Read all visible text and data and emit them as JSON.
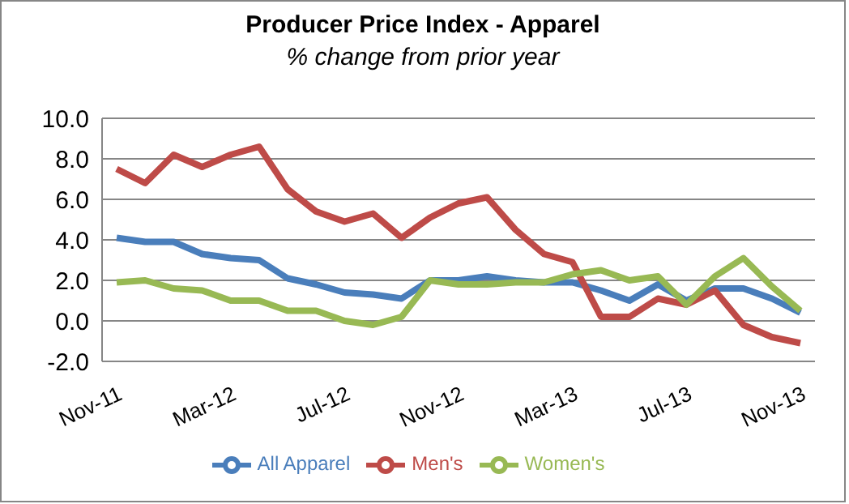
{
  "chart_data": {
    "type": "line",
    "title": "Producer Price Index - Apparel",
    "subtitle": "% change from prior year",
    "categories": [
      "Nov-11",
      null,
      null,
      null,
      "Mar-12",
      null,
      null,
      null,
      "Jul-12",
      null,
      null,
      null,
      "Nov-12",
      null,
      null,
      null,
      "Mar-13",
      null,
      null,
      null,
      "Jul-13",
      null,
      null,
      null,
      "Nov-13"
    ],
    "series": [
      {
        "name": "All Apparel",
        "color": "#4a7ebb",
        "values": [
          4.1,
          3.9,
          3.9,
          3.3,
          3.1,
          3.0,
          2.1,
          1.8,
          1.4,
          1.3,
          1.1,
          2.0,
          2.0,
          2.2,
          2.0,
          1.9,
          1.9,
          1.5,
          1.0,
          1.8,
          1.0,
          1.6,
          1.6,
          1.1,
          0.4
        ]
      },
      {
        "name": "Men's",
        "color": "#be4b48",
        "values": [
          7.5,
          6.8,
          8.2,
          7.6,
          8.2,
          8.6,
          6.5,
          5.4,
          4.9,
          5.3,
          4.1,
          5.1,
          5.8,
          6.1,
          4.5,
          3.3,
          2.9,
          0.2,
          0.2,
          1.1,
          0.8,
          1.5,
          -0.2,
          -0.8,
          -1.1
        ]
      },
      {
        "name": "Women's",
        "color": "#98b954",
        "values": [
          1.9,
          2.0,
          1.6,
          1.5,
          1.0,
          1.0,
          0.5,
          0.5,
          0.0,
          -0.2,
          0.2,
          2.0,
          1.8,
          1.8,
          1.9,
          1.9,
          2.3,
          2.5,
          2.0,
          2.2,
          0.8,
          2.2,
          3.1,
          1.7,
          0.5
        ]
      }
    ],
    "ylim": [
      -2,
      10
    ],
    "yticks": [
      {
        "value": -2,
        "label": "-2.0"
      },
      {
        "value": 0,
        "label": "0.0"
      },
      {
        "value": 2,
        "label": "2.0"
      },
      {
        "value": 4,
        "label": "4.0"
      },
      {
        "value": 6,
        "label": "6.0"
      },
      {
        "value": 8,
        "label": "8.0"
      },
      {
        "value": 10,
        "label": "10.0"
      }
    ],
    "grid": "y",
    "legend": "bottom",
    "marker": "none",
    "line_style": "solid"
  }
}
